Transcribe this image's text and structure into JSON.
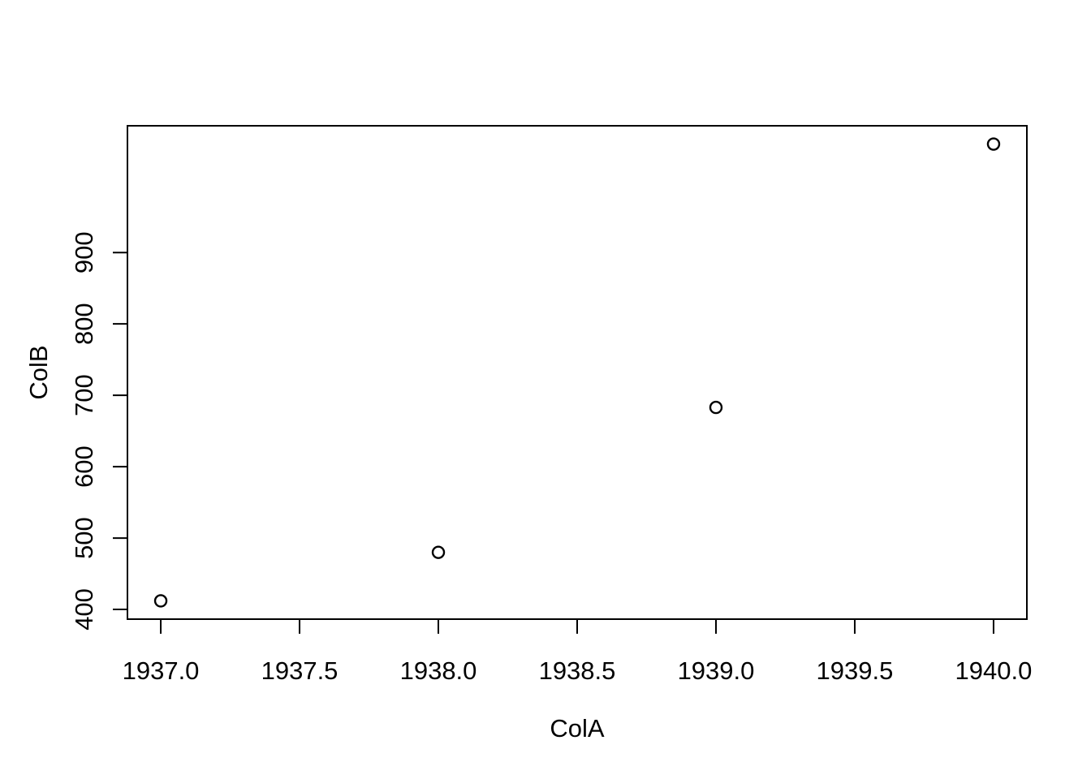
{
  "chart_data": {
    "type": "scatter",
    "title": "",
    "xlabel": "ColA",
    "ylabel": "ColB",
    "points": [
      {
        "x": 1937,
        "y": 412
      },
      {
        "x": 1938,
        "y": 480
      },
      {
        "x": 1939,
        "y": 683
      },
      {
        "x": 1940,
        "y": 1052
      }
    ],
    "xlim": [
      1936.88,
      1940.12
    ],
    "ylim": [
      386.4,
      1077.6
    ],
    "x_ticks": [
      {
        "value": 1937.0,
        "label": "1937.0"
      },
      {
        "value": 1937.5,
        "label": "1937.5"
      },
      {
        "value": 1938.0,
        "label": "1938.0"
      },
      {
        "value": 1938.5,
        "label": "1938.5"
      },
      {
        "value": 1939.0,
        "label": "1939.0"
      },
      {
        "value": 1939.5,
        "label": "1939.5"
      },
      {
        "value": 1940.0,
        "label": "1940.0"
      }
    ],
    "y_ticks": [
      {
        "value": 400,
        "label": "400"
      },
      {
        "value": 500,
        "label": "500"
      },
      {
        "value": 600,
        "label": "600"
      },
      {
        "value": 700,
        "label": "700"
      },
      {
        "value": 800,
        "label": "800"
      },
      {
        "value": 900,
        "label": "900"
      }
    ],
    "grid": false,
    "legend": "none",
    "marker": "open-circle",
    "colors": {
      "marker_stroke": "#000000",
      "axis": "#000000",
      "text": "#000000",
      "background": "#ffffff"
    }
  }
}
